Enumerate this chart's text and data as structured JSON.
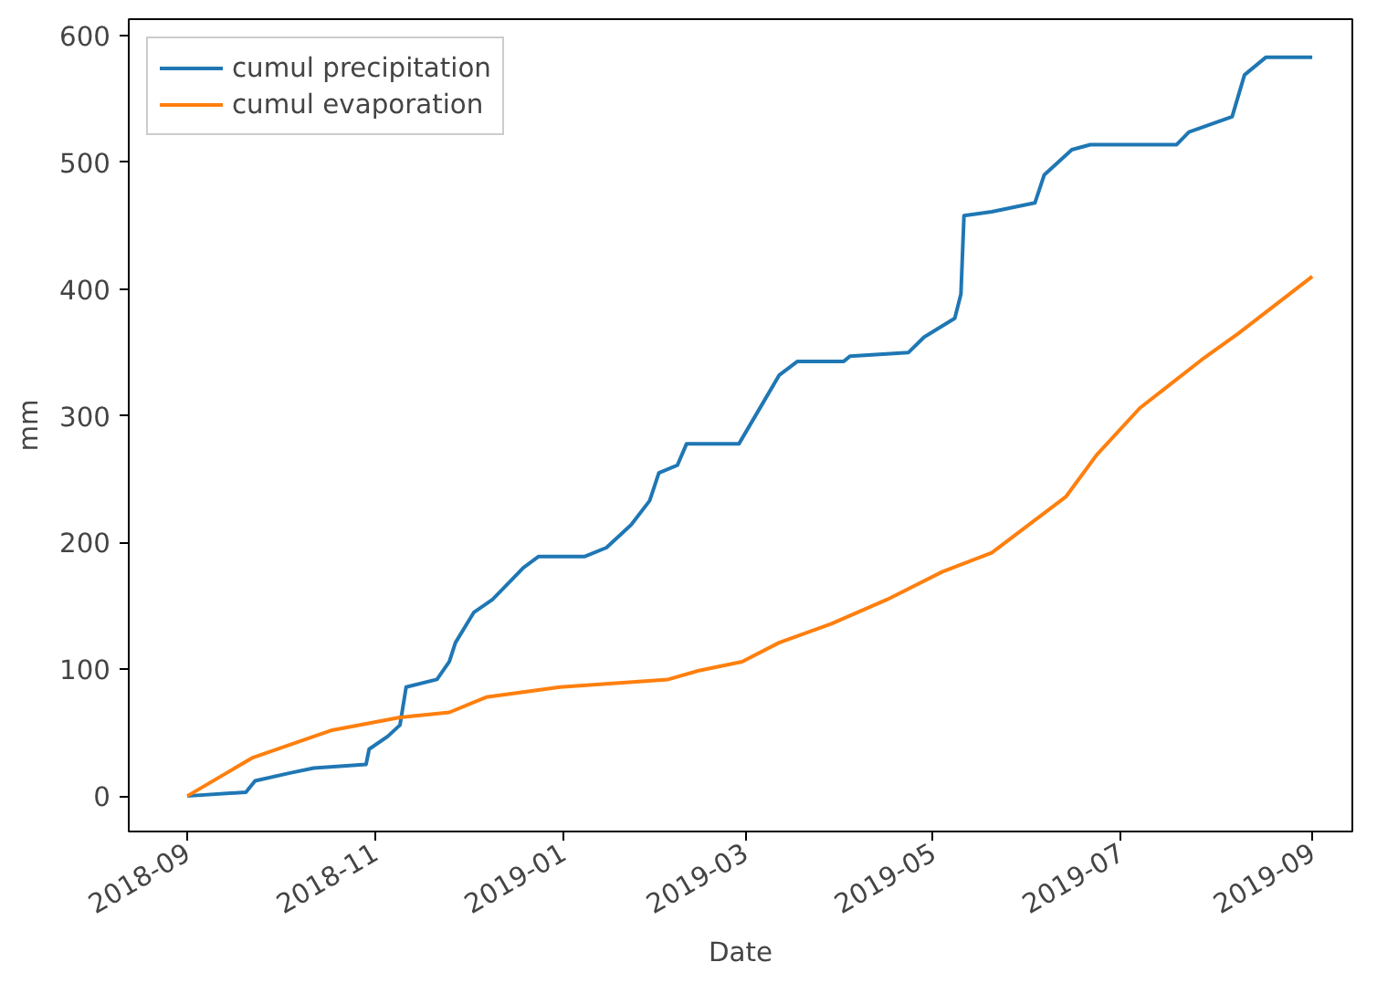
{
  "chart_data": {
    "type": "line",
    "xlabel": "Date",
    "ylabel": "mm",
    "xlim": [
      "2018-08-13",
      "2019-09-14"
    ],
    "ylim": [
      -28,
      613
    ],
    "xticks": [
      "2018-09",
      "2018-11",
      "2019-01",
      "2019-03",
      "2019-05",
      "2019-07",
      "2019-09"
    ],
    "yticks": [
      0,
      100,
      200,
      300,
      400,
      500,
      600
    ],
    "grid": false,
    "legend": "top left",
    "line_style": "solid",
    "marker": "none",
    "series": [
      {
        "name": "cumul precipitation",
        "color": "#1f77b4",
        "x": [
          "2018-09-01",
          "2018-09-20",
          "2018-09-23",
          "2018-10-04",
          "2018-10-12",
          "2018-10-29",
          "2018-10-30",
          "2018-11-05",
          "2018-11-09",
          "2018-11-11",
          "2018-11-21",
          "2018-11-25",
          "2018-11-27",
          "2018-12-03",
          "2018-12-09",
          "2018-12-15",
          "2018-12-19",
          "2018-12-24",
          "2019-01-08",
          "2019-01-15",
          "2019-01-23",
          "2019-01-29",
          "2019-02-01",
          "2019-02-07",
          "2019-02-10",
          "2019-02-27",
          "2019-03-06",
          "2019-03-12",
          "2019-03-18",
          "2019-04-02",
          "2019-04-04",
          "2019-04-23",
          "2019-04-28",
          "2019-05-08",
          "2019-05-10",
          "2019-05-11",
          "2019-05-20",
          "2019-06-03",
          "2019-06-06",
          "2019-06-15",
          "2019-06-21",
          "2019-07-19",
          "2019-07-23",
          "2019-08-06",
          "2019-08-10",
          "2019-08-17",
          "2019-09-01"
        ],
        "values": [
          0,
          3,
          12,
          18,
          22,
          25,
          37,
          47,
          56,
          86,
          92,
          106,
          121,
          145,
          155,
          170,
          180,
          189,
          189,
          196,
          214,
          233,
          255,
          261,
          278,
          278,
          307,
          332,
          343,
          343,
          347,
          350,
          362,
          377,
          396,
          458,
          461,
          468,
          490,
          510,
          514,
          514,
          524,
          536,
          569,
          583,
          583
        ]
      },
      {
        "name": "cumul evaporation",
        "color": "#ff7f0e",
        "x": [
          "2018-09-01",
          "2018-09-22",
          "2018-10-18",
          "2018-11-09",
          "2018-11-25",
          "2018-12-07",
          "2018-12-31",
          "2019-02-04",
          "2019-02-14",
          "2019-02-28",
          "2019-03-12",
          "2019-03-29",
          "2019-04-16",
          "2019-05-04",
          "2019-05-20",
          "2019-06-13",
          "2019-06-23",
          "2019-07-07",
          "2019-07-27",
          "2019-08-08",
          "2019-09-01"
        ],
        "values": [
          0,
          30,
          52,
          62,
          66,
          78,
          86,
          92,
          99,
          106,
          121,
          136,
          155,
          177,
          192,
          236,
          269,
          306,
          344,
          365,
          410
        ]
      }
    ]
  }
}
